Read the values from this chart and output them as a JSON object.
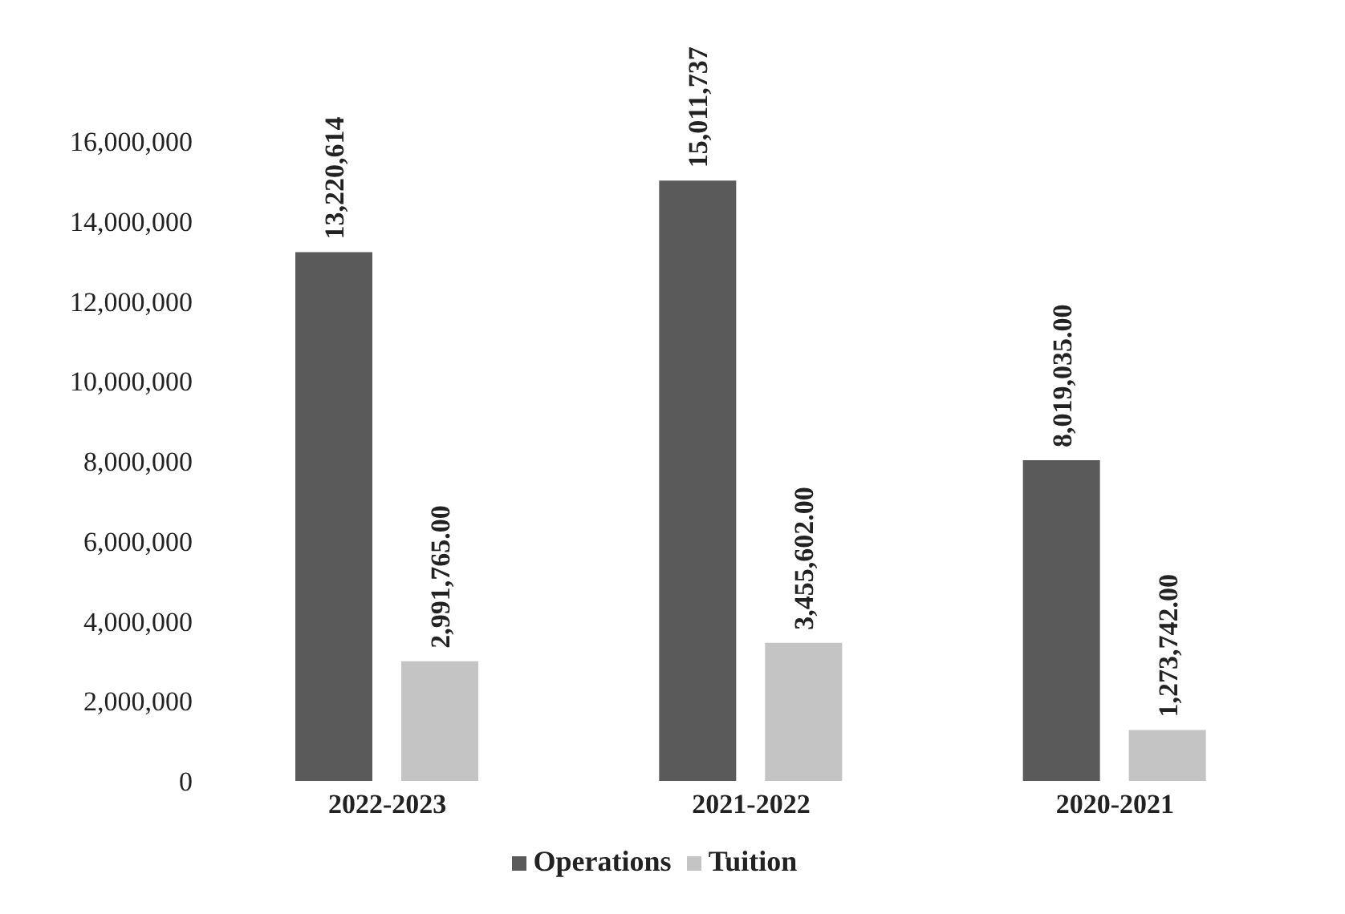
{
  "chart_data": {
    "type": "bar",
    "categories": [
      "2022-2023",
      "2021-2022",
      "2020-2021"
    ],
    "series": [
      {
        "name": "Operations",
        "color": "#5a5a5a",
        "values": [
          13220614,
          15011737,
          8019035
        ],
        "value_labels": [
          "13,220,614",
          "15,011,737",
          "8,019,035.00"
        ]
      },
      {
        "name": "Tuition",
        "color": "#c4c4c4",
        "values": [
          2991765,
          3455602,
          1273742
        ],
        "value_labels": [
          "2,991,765.00",
          "3,455,602.00",
          "1,273,742.00"
        ]
      }
    ],
    "ylim": [
      0,
      16000000
    ],
    "yticks": [
      {
        "value": 0,
        "label": "0"
      },
      {
        "value": 2000000,
        "label": "2,000,000"
      },
      {
        "value": 4000000,
        "label": "4,000,000"
      },
      {
        "value": 6000000,
        "label": "6,000,000"
      },
      {
        "value": 8000000,
        "label": "8,000,000"
      },
      {
        "value": 10000000,
        "label": "10,000,000"
      },
      {
        "value": 12000000,
        "label": "12,000,000"
      },
      {
        "value": 14000000,
        "label": "14,000,000"
      },
      {
        "value": 16000000,
        "label": "16,000,000"
      }
    ],
    "grid": false,
    "legend": "bottom"
  }
}
